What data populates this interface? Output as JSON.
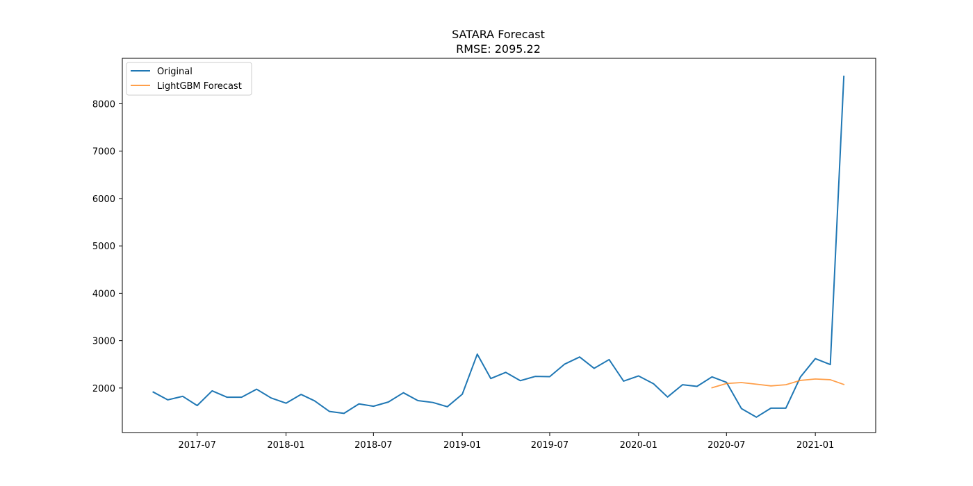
{
  "chart_data": {
    "type": "line",
    "title": "SATARA Forecast",
    "subtitle": "RMSE: 2095.22",
    "xlabel": "",
    "ylabel": "",
    "x_ticks": [
      "2017-07",
      "2018-01",
      "2018-07",
      "2019-01",
      "2019-07",
      "2020-01",
      "2020-07",
      "2021-01"
    ],
    "y_ticks": [
      2000,
      3000,
      4000,
      5000,
      6000,
      7000,
      8000
    ],
    "xlim": [
      "2017-01-27",
      "2021-05-06"
    ],
    "ylim": [
      1060,
      8960
    ],
    "grid": false,
    "legend_position": "top-left",
    "series": [
      {
        "name": "Original",
        "color": "#1f77b4",
        "x": [
          "2017-04-01",
          "2017-05-01",
          "2017-06-01",
          "2017-07-01",
          "2017-08-01",
          "2017-09-01",
          "2017-10-01",
          "2017-11-01",
          "2017-12-01",
          "2018-01-01",
          "2018-02-01",
          "2018-03-01",
          "2018-04-01",
          "2018-05-01",
          "2018-06-01",
          "2018-07-01",
          "2018-08-01",
          "2018-09-01",
          "2018-10-01",
          "2018-11-01",
          "2018-12-01",
          "2019-01-01",
          "2019-02-01",
          "2019-03-01",
          "2019-04-01",
          "2019-05-01",
          "2019-06-01",
          "2019-07-01",
          "2019-08-01",
          "2019-09-01",
          "2019-10-01",
          "2019-11-01",
          "2019-12-01",
          "2020-01-01",
          "2020-02-01",
          "2020-03-01",
          "2020-04-01",
          "2020-05-01",
          "2020-06-01",
          "2020-07-01",
          "2020-08-01",
          "2020-09-01",
          "2020-10-01",
          "2020-11-01",
          "2020-12-01",
          "2021-01-01",
          "2021-02-01",
          "2021-03-01"
        ],
        "values": [
          1915,
          1750,
          1825,
          1630,
          1940,
          1805,
          1805,
          1975,
          1790,
          1680,
          1865,
          1730,
          1505,
          1465,
          1665,
          1615,
          1705,
          1900,
          1735,
          1695,
          1605,
          1870,
          2715,
          2200,
          2330,
          2155,
          2245,
          2240,
          2505,
          2655,
          2415,
          2600,
          2145,
          2255,
          2090,
          1810,
          2070,
          2035,
          2235,
          2120,
          1565,
          1385,
          1575,
          1575,
          2230,
          2620,
          2495,
          8580
        ]
      },
      {
        "name": "LightGBM Forecast",
        "color": "#ff7f0e",
        "x": [
          "2020-06-01",
          "2020-07-01",
          "2020-08-01",
          "2020-09-01",
          "2020-10-01",
          "2020-11-01",
          "2020-12-01",
          "2021-01-01",
          "2021-02-01",
          "2021-03-01"
        ],
        "values": [
          2005,
          2095,
          2115,
          2080,
          2045,
          2070,
          2160,
          2190,
          2175,
          2075
        ]
      }
    ]
  }
}
